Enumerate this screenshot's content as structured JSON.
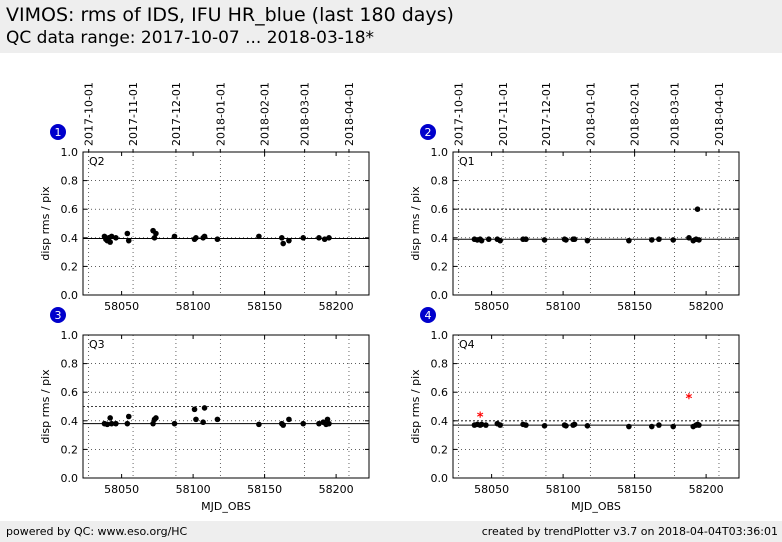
{
  "header": {
    "title": "VIMOS: rms of IDS, IFU HR_blue (last 180 days)",
    "subtitle": "QC data range: 2017-10-07 ... 2018-03-18*"
  },
  "footer": {
    "left": "powered by QC: www.eso.org/HC",
    "right": "created by trendPlotter v3.7 on 2018-04-04T03:36:01"
  },
  "colors": {
    "data": "#000000",
    "outlier": "#ff0000",
    "marker_badge": "#0000cc"
  },
  "chart_data": [
    {
      "type": "scatter",
      "marker": "1",
      "label": "Q2",
      "ylabel": "disp rms / pix",
      "xlabel": "",
      "xlim": [
        58023,
        58223
      ],
      "ylim": [
        0,
        1.0
      ],
      "yticks": [
        "0.0",
        "0.2",
        "0.4",
        "0.6",
        "0.8",
        "1.0"
      ],
      "xticks": [
        "58050",
        "58100",
        "58150",
        "58200"
      ],
      "date_ticks": [
        "2017-10-01",
        "2017-11-01",
        "2017-12-01",
        "2018-01-01",
        "2018-02-01",
        "2018-03-01",
        "2018-04-01"
      ],
      "reference_line": 0.395,
      "threshold_line": 0.5,
      "threshold_shown": false,
      "points": [
        [
          58038,
          0.41
        ],
        [
          58039,
          0.39
        ],
        [
          58040,
          0.38
        ],
        [
          58041,
          0.4
        ],
        [
          58042,
          0.37
        ],
        [
          58043,
          0.41
        ],
        [
          58046,
          0.4
        ],
        [
          58054,
          0.43
        ],
        [
          58055,
          0.38
        ],
        [
          58072,
          0.45
        ],
        [
          58073,
          0.4
        ],
        [
          58074,
          0.43
        ],
        [
          58087,
          0.41
        ],
        [
          58101,
          0.39
        ],
        [
          58102,
          0.4
        ],
        [
          58107,
          0.4
        ],
        [
          58108,
          0.41
        ],
        [
          58117,
          0.39
        ],
        [
          58146,
          0.41
        ],
        [
          58162,
          0.4
        ],
        [
          58163,
          0.36
        ],
        [
          58167,
          0.38
        ],
        [
          58177,
          0.4
        ],
        [
          58188,
          0.4
        ],
        [
          58192,
          0.39
        ],
        [
          58195,
          0.4
        ]
      ],
      "outliers": []
    },
    {
      "type": "scatter",
      "marker": "2",
      "label": "Q1",
      "ylabel": "disp rms / pix",
      "xlabel": "",
      "xlim": [
        58023,
        58223
      ],
      "ylim": [
        0,
        1.0
      ],
      "yticks": [
        "0.0",
        "0.2",
        "0.4",
        "0.6",
        "0.8",
        "1.0"
      ],
      "xticks": [
        "58050",
        "58100",
        "58150",
        "58200"
      ],
      "date_ticks": [
        "2017-10-01",
        "2017-11-01",
        "2017-12-01",
        "2018-01-01",
        "2018-02-01",
        "2018-03-01",
        "2018-04-01"
      ],
      "reference_line": 0.39,
      "threshold_line": 0.6,
      "threshold_shown": true,
      "points": [
        [
          58038,
          0.39
        ],
        [
          58040,
          0.385
        ],
        [
          58042,
          0.39
        ],
        [
          58043,
          0.38
        ],
        [
          58048,
          0.39
        ],
        [
          58054,
          0.39
        ],
        [
          58056,
          0.38
        ],
        [
          58072,
          0.39
        ],
        [
          58074,
          0.39
        ],
        [
          58087,
          0.385
        ],
        [
          58101,
          0.39
        ],
        [
          58102,
          0.385
        ],
        [
          58107,
          0.39
        ],
        [
          58108,
          0.39
        ],
        [
          58117,
          0.38
        ],
        [
          58146,
          0.38
        ],
        [
          58162,
          0.385
        ],
        [
          58167,
          0.39
        ],
        [
          58177,
          0.385
        ],
        [
          58188,
          0.4
        ],
        [
          58191,
          0.38
        ],
        [
          58193,
          0.39
        ],
        [
          58194,
          0.6
        ],
        [
          58195,
          0.385
        ]
      ],
      "outliers": []
    },
    {
      "type": "scatter",
      "marker": "3",
      "label": "Q3",
      "ylabel": "disp rms / pix",
      "xlabel": "",
      "xlim": [
        58023,
        58223
      ],
      "ylim": [
        0,
        1.0
      ],
      "yticks": [
        "0.0",
        "0.2",
        "0.4",
        "0.6",
        "0.8",
        "1.0"
      ],
      "xticks": [
        "58050",
        "58100",
        "58150",
        "58200"
      ],
      "date_ticks": [],
      "reference_line": 0.38,
      "threshold_line": 0.5,
      "threshold_shown": true,
      "points": [
        [
          58038,
          0.38
        ],
        [
          58040,
          0.375
        ],
        [
          58042,
          0.42
        ],
        [
          58043,
          0.38
        ],
        [
          58046,
          0.38
        ],
        [
          58054,
          0.38
        ],
        [
          58055,
          0.43
        ],
        [
          58072,
          0.38
        ],
        [
          58073,
          0.41
        ],
        [
          58074,
          0.42
        ],
        [
          58087,
          0.38
        ],
        [
          58101,
          0.48
        ],
        [
          58102,
          0.41
        ],
        [
          58107,
          0.39
        ],
        [
          58108,
          0.49
        ],
        [
          58117,
          0.41
        ],
        [
          58146,
          0.375
        ],
        [
          58162,
          0.38
        ],
        [
          58163,
          0.37
        ],
        [
          58167,
          0.41
        ],
        [
          58177,
          0.38
        ],
        [
          58188,
          0.38
        ],
        [
          58191,
          0.39
        ],
        [
          58193,
          0.375
        ],
        [
          58194,
          0.41
        ],
        [
          58195,
          0.38
        ]
      ],
      "outliers": []
    },
    {
      "type": "scatter",
      "marker": "4",
      "label": "Q4",
      "ylabel": "disp rms / pix",
      "xlabel": "MJD_OBS",
      "xlim": [
        58023,
        58223
      ],
      "ylim": [
        0,
        1.0
      ],
      "yticks": [
        "0.0",
        "0.2",
        "0.4",
        "0.6",
        "0.8",
        "1.0"
      ],
      "xticks": [
        "58050",
        "58100",
        "58150",
        "58200"
      ],
      "date_ticks": [],
      "reference_line": 0.37,
      "threshold_line": 0.4,
      "threshold_shown": true,
      "points": [
        [
          58038,
          0.37
        ],
        [
          58040,
          0.375
        ],
        [
          58042,
          0.37
        ],
        [
          58043,
          0.375
        ],
        [
          58046,
          0.37
        ],
        [
          58054,
          0.38
        ],
        [
          58056,
          0.37
        ],
        [
          58072,
          0.375
        ],
        [
          58074,
          0.37
        ],
        [
          58087,
          0.365
        ],
        [
          58101,
          0.37
        ],
        [
          58102,
          0.365
        ],
        [
          58107,
          0.37
        ],
        [
          58108,
          0.375
        ],
        [
          58117,
          0.365
        ],
        [
          58146,
          0.36
        ],
        [
          58162,
          0.36
        ],
        [
          58167,
          0.37
        ],
        [
          58177,
          0.36
        ],
        [
          58191,
          0.36
        ],
        [
          58193,
          0.37
        ],
        [
          58194,
          0.375
        ],
        [
          58195,
          0.37
        ]
      ],
      "outliers": [
        [
          58042,
          0.43
        ],
        [
          58188,
          0.56
        ]
      ]
    }
  ],
  "shared_xlabel": "MJD_OBS"
}
